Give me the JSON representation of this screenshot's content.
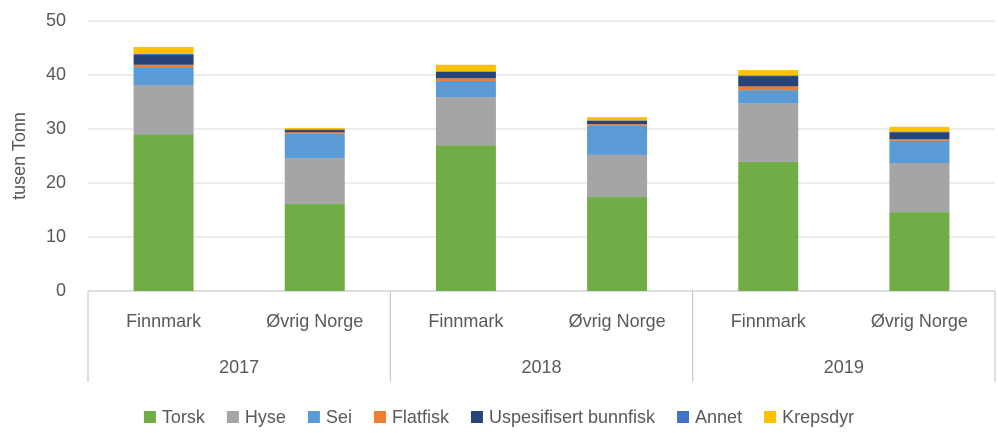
{
  "chart_data": {
    "type": "stacked_bar",
    "y_label": "tusen Tonn",
    "categories": [
      "Finnmark",
      "Øvrig Norge",
      "Finnmark",
      "Øvrig Norge",
      "Finnmark",
      "Øvrig Norge"
    ],
    "groups": [
      "2017",
      "2018",
      "2019"
    ],
    "series": [
      {
        "name": "Torsk",
        "color": "#70ad47",
        "values": [
          29.0,
          16.1,
          27.0,
          17.4,
          23.9,
          14.6
        ]
      },
      {
        "name": "Hyse",
        "color": "#a5a5a5",
        "values": [
          9.1,
          8.5,
          8.9,
          7.8,
          10.9,
          9.1
        ]
      },
      {
        "name": "Sei",
        "color": "#5b9bd5",
        "values": [
          3.2,
          4.5,
          3.0,
          5.4,
          2.4,
          4.1
        ]
      },
      {
        "name": "Flatfisk",
        "color": "#ed7d31",
        "values": [
          0.6,
          0.3,
          0.5,
          0.3,
          0.7,
          0.3
        ]
      },
      {
        "name": "Uspesifisert bunnfisk",
        "color": "#264478",
        "values": [
          1.8,
          0.4,
          1.2,
          0.6,
          1.9,
          1.3
        ]
      },
      {
        "name": "Annet",
        "color": "#4472c4",
        "values": [
          0.2,
          0.1,
          0.1,
          0.1,
          0.1,
          0.1
        ]
      },
      {
        "name": "Krepsdyr",
        "color": "#ffc000",
        "values": [
          1.3,
          0.3,
          1.2,
          0.6,
          1.0,
          0.9
        ]
      }
    ],
    "ylim": [
      0,
      50
    ],
    "yticks": [
      0,
      10,
      20,
      30,
      40,
      50
    ],
    "grid": true,
    "legend": "bottom"
  }
}
